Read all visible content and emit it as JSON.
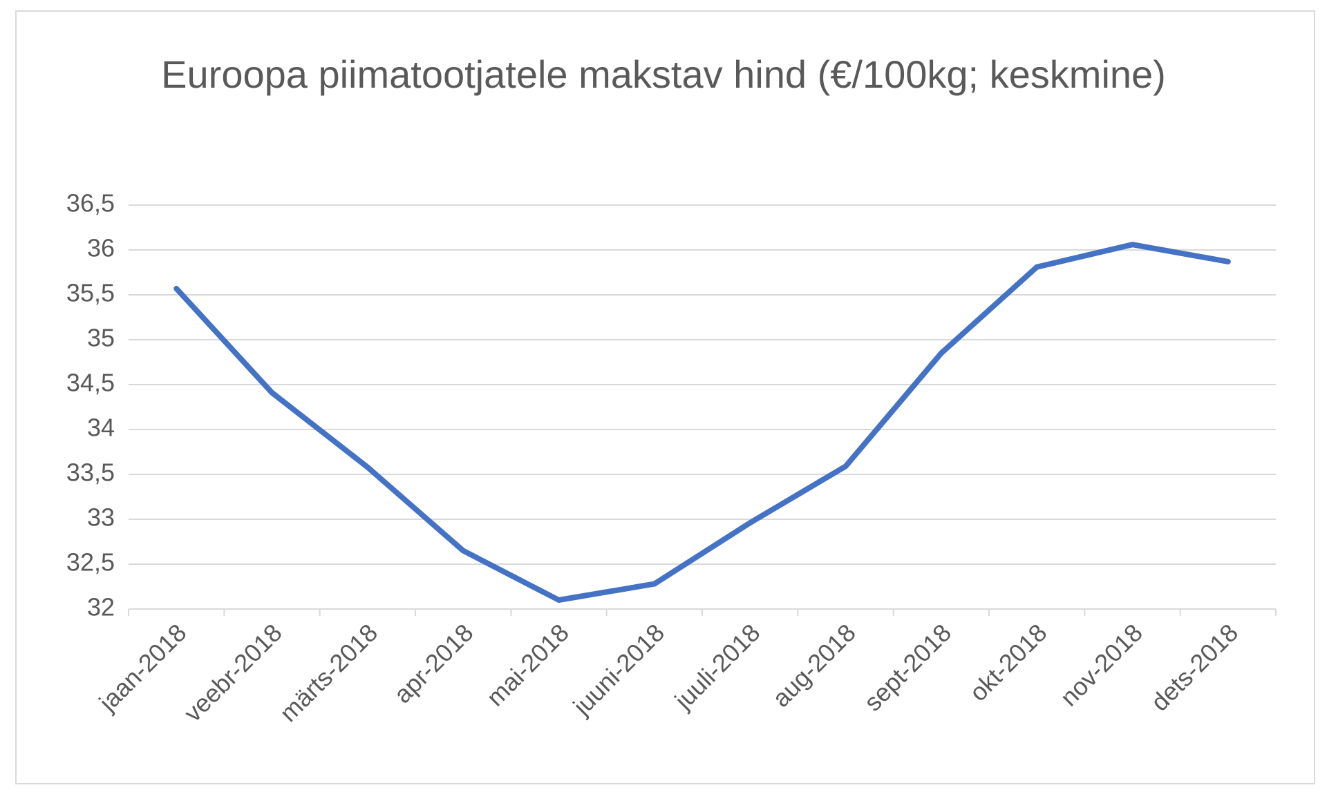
{
  "chart_data": {
    "type": "line",
    "title": "Euroopa piimatootjatele makstav hind (€/100kg; keskmine)",
    "categories": [
      "jaan-2018",
      "veebr-2018",
      "märts-2018",
      "apr-2018",
      "mai-2018",
      "juuni-2018",
      "juuli-2018",
      "aug-2018",
      "sept-2018",
      "okt-2018",
      "nov-2018",
      "dets-2018"
    ],
    "values": [
      35.57,
      34.41,
      33.58,
      32.65,
      32.1,
      32.28,
      32.96,
      33.59,
      34.85,
      35.81,
      36.06,
      35.87
    ],
    "color": "#4472c4",
    "ylim": [
      32,
      36.5
    ],
    "yticks": [
      32,
      {
        "value": 32.5,
        "label": "32,5"
      },
      33,
      {
        "value": 33.5,
        "label": "33,5"
      },
      34,
      {
        "value": 34.5,
        "label": "34,5"
      },
      35,
      {
        "value": 35.5,
        "label": "35,5"
      },
      36,
      {
        "value": 36.5,
        "label": "36,5"
      }
    ],
    "grid": true
  }
}
